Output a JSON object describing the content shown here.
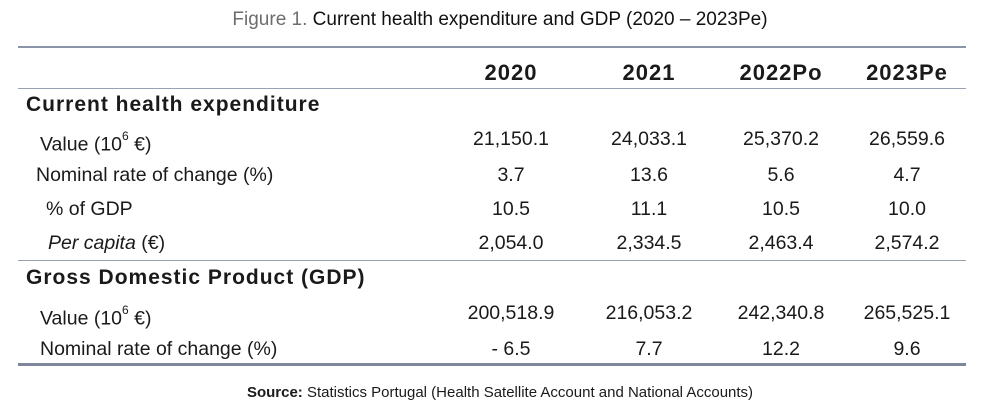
{
  "caption": {
    "figure_label": "Figure 1.",
    "title": "Current health expenditure and GDP (2020 – 2023Pe)"
  },
  "columns": [
    "2020",
    "2021",
    "2022Po",
    "2023Pe"
  ],
  "sections": [
    {
      "title": "Current health expenditure",
      "rows": [
        {
          "label_main": "Value (10",
          "label_sup": "6",
          "label_tail": " €)",
          "values": [
            "21,150.1",
            "24,033.1",
            "25,370.2",
            "26,559.6"
          ]
        },
        {
          "label_main": "Nominal rate of change (%)",
          "values": [
            "3.7",
            "13.6",
            "5.6",
            "4.7"
          ]
        },
        {
          "label_main": "% of GDP",
          "values": [
            "10.5",
            "11.1",
            "10.5",
            "10.0"
          ]
        },
        {
          "label_italic": "Per capita",
          "label_tail": " (€)",
          "values": [
            "2,054.0",
            "2,334.5",
            "2,463.4",
            "2,574.2"
          ]
        }
      ]
    },
    {
      "title": "Gross Domestic Product (GDP)",
      "rows": [
        {
          "label_main": "Value (10",
          "label_sup": "6",
          "label_tail": " €)",
          "values": [
            "200,518.9",
            "216,053.2",
            "242,340.8",
            "265,525.1"
          ]
        },
        {
          "label_main": "Nominal rate of change (%)",
          "values": [
            "- 6.5",
            "7.7",
            "12.2",
            "9.6"
          ]
        }
      ]
    }
  ],
  "source": {
    "label": "Source:",
    "text": " Statistics Portugal (Health Satellite Account and National Accounts)"
  }
}
